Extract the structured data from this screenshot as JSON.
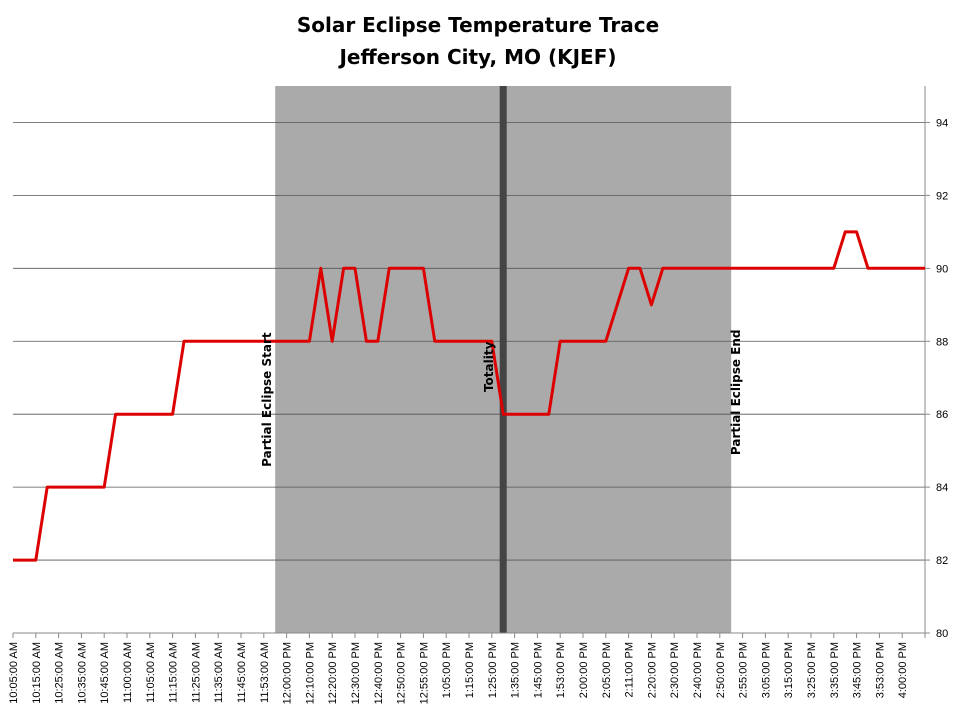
{
  "chart_data": {
    "type": "line",
    "title": "Solar Eclipse Temperature Trace",
    "subtitle": "Jefferson City, MO (KJEF)",
    "xlabel": "",
    "ylabel": "",
    "ylim": [
      80,
      95
    ],
    "yticks": [
      80,
      82,
      84,
      86,
      88,
      90,
      92,
      94
    ],
    "y_axis_side": "right",
    "grid": "horizontal",
    "legend": "none",
    "x_tick_labels": [
      "10:05:00 AM",
      "10:15:00 AM",
      "10:25:00 AM",
      "10:35:00 AM",
      "10:45:00 AM",
      "11:00:00 AM",
      "11:05:00 AM",
      "11:15:00 AM",
      "11:25:00 AM",
      "11:35:00 AM",
      "11:45:00 AM",
      "11:53:00 AM",
      "12:00:00 PM",
      "12:10:00 PM",
      "12:20:00 PM",
      "12:30:00 PM",
      "12:40:00 PM",
      "12:50:00 PM",
      "12:55:00 PM",
      "1:05:00 PM",
      "1:15:00 PM",
      "1:25:00 PM",
      "1:35:00 PM",
      "1:45:00 PM",
      "1:53:00 PM",
      "2:00:00 PM",
      "2:05:00 PM",
      "2:11:00 PM",
      "2:20:00 PM",
      "2:30:00 PM",
      "2:40:00 PM",
      "2:50:00 PM",
      "2:55:00 PM",
      "3:05:00 PM",
      "3:15:00 PM",
      "3:25:00 PM",
      "3:35:00 PM",
      "3:45:00 PM",
      "3:53:00 PM",
      "4:00:00 PM"
    ],
    "series": [
      {
        "color": "#dd0000",
        "points": [
          [
            0,
            82
          ],
          [
            1,
            82
          ],
          [
            1.5,
            84
          ],
          [
            4,
            84
          ],
          [
            4.5,
            86
          ],
          [
            7,
            86
          ],
          [
            7.5,
            88
          ],
          [
            13,
            88
          ],
          [
            13.5,
            90
          ],
          [
            14,
            88
          ],
          [
            14.5,
            90
          ],
          [
            15,
            90
          ],
          [
            15.5,
            88
          ],
          [
            16,
            88
          ],
          [
            16.5,
            90
          ],
          [
            18,
            90
          ],
          [
            18.5,
            88
          ],
          [
            21,
            88
          ],
          [
            21.5,
            86
          ],
          [
            23.5,
            86
          ],
          [
            24,
            88
          ],
          [
            26,
            88
          ],
          [
            27,
            90
          ],
          [
            27.5,
            90
          ],
          [
            28,
            89
          ],
          [
            28.5,
            90
          ],
          [
            36,
            90
          ],
          [
            36.5,
            91
          ],
          [
            37,
            91
          ],
          [
            37.5,
            90
          ],
          [
            40,
            90
          ]
        ]
      }
    ],
    "shaded_region": {
      "start": 11.5,
      "end": 31.5,
      "color": "#aaaaaa"
    },
    "annotations": [
      {
        "label": "Partial Eclipse Start",
        "x": 11.5
      },
      {
        "label": "Totality",
        "x": 21.5
      },
      {
        "label": "Partial Eclipse End",
        "x": 31.5
      }
    ],
    "totality_line": {
      "x": 21.5,
      "color": "#444444"
    }
  }
}
